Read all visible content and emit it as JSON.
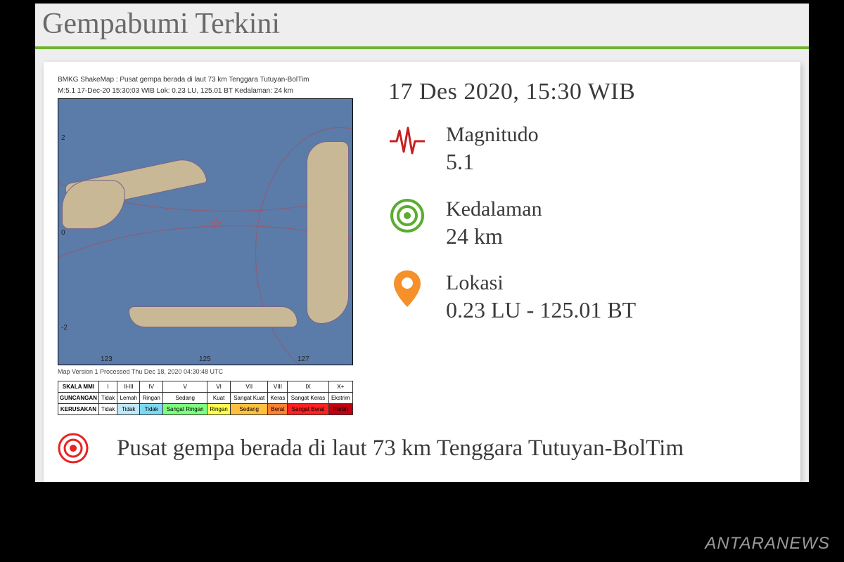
{
  "header": {
    "title": "Gempabumi Terkini"
  },
  "map": {
    "caption_line1": "BMKG ShakeMap : Pusat gempa berada di laut 73 km Tenggara Tutuyan-BolTim",
    "caption_line2": "M:5.1  17-Dec-20 15:30:03 WIB  Lok: 0.23 LU, 125.01 BT  Kedalaman: 24 km",
    "footer": "Map Version 1 Processed Thu Dec 18, 2020 04:30:48 UTC",
    "axis_left_top": "2",
    "axis_left_mid": "0",
    "axis_left_bot": "-2",
    "axis_bot_left": "123",
    "axis_bot_mid": "125",
    "axis_bot_right": "127",
    "mmi": {
      "rows": [
        [
          "SKALA MMI",
          "I",
          "II-III",
          "IV",
          "V",
          "VI",
          "VII",
          "VIII",
          "IX",
          "X+"
        ],
        [
          "GUNCANGAN",
          "Tidak",
          "Lemah",
          "Ringan",
          "Sedang",
          "Kuat",
          "Sangat Kuat",
          "Keras",
          "Sangat Keras",
          "Ekstrim"
        ],
        [
          "KERUSAKAN",
          "Tidak",
          "Tidak",
          "Tidak",
          "Sangat Ringan",
          "Ringan",
          "Sedang",
          "Berat",
          "Sangat Berat",
          "Parah"
        ]
      ],
      "colors": [
        "#ffffff",
        "#c0e8f8",
        "#80d8f0",
        "#7fff7f",
        "#ffff50",
        "#ffc040",
        "#ff8030",
        "#ff2020",
        "#c00010"
      ]
    }
  },
  "info": {
    "datetime": "17 Des 2020, 15:30 WIB",
    "magnitude": {
      "label": "Magnitudo",
      "value": "5.1"
    },
    "depth": {
      "label": "Kedalaman",
      "value": "24 km"
    },
    "location": {
      "label": "Lokasi",
      "value": "0.23 LU - 125.01 BT"
    }
  },
  "summary": {
    "text": "Pusat gempa berada di laut 73 km Tenggara Tutuyan-BolTim"
  },
  "watermark": "ANTARANEWS",
  "colors": {
    "accent_green": "#6fb52e",
    "icon_red": "#c62020",
    "icon_green": "#5aad2f",
    "icon_orange": "#f5902a",
    "target_red": "#e92222"
  }
}
